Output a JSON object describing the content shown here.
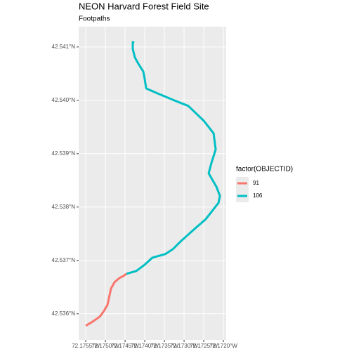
{
  "chart_data": {
    "type": "line",
    "title": "NEON Harvard Forest Field Site",
    "subtitle": "Footpaths",
    "legend_title": "factor(OBJECTID)",
    "xlim": [
      -72.17568,
      -72.17193
    ],
    "ylim": [
      42.53551,
      42.54138
    ],
    "xticks": [
      {
        "value": -72.1755,
        "label": "72.1755°W"
      },
      {
        "value": -72.175,
        "label": "72.1750°W"
      },
      {
        "value": -72.1745,
        "label": "72.1745°W"
      },
      {
        "value": -72.174,
        "label": "72.1740°W"
      },
      {
        "value": -72.1735,
        "label": "72.1735°W"
      },
      {
        "value": -72.173,
        "label": "72.1730°W"
      },
      {
        "value": -72.1725,
        "label": "72.1725°W"
      },
      {
        "value": -72.172,
        "label": "72.1720°W"
      }
    ],
    "yticks": [
      {
        "value": 42.536,
        "label": "42.536°N"
      },
      {
        "value": 42.537,
        "label": "42.537°N"
      },
      {
        "value": 42.538,
        "label": "42.538°N"
      },
      {
        "value": 42.539,
        "label": "42.539°N"
      },
      {
        "value": 42.54,
        "label": "42.540°N"
      },
      {
        "value": 42.541,
        "label": "42.541°N"
      }
    ],
    "grid": true,
    "series": [
      {
        "name": "91",
        "color": "#F8766D",
        "x": [
          -72.1755,
          -72.175321,
          -72.175143,
          -72.175036,
          -72.174946,
          -72.174893,
          -72.174857,
          -72.174768,
          -72.174643,
          -72.174536,
          -72.174464
        ],
        "values": [
          42.535776,
          42.535855,
          42.535947,
          42.536053,
          42.536171,
          42.536355,
          42.536474,
          42.536592,
          42.536671,
          42.536711,
          42.53675
        ]
      },
      {
        "name": "106",
        "color": "#00BFC4",
        "x": [
          -72.174464,
          -72.174214,
          -72.174,
          -72.173804,
          -72.173482,
          -72.173286,
          -72.173071,
          -72.17275,
          -72.172446,
          -72.172125,
          -72.172089,
          -72.172179,
          -72.172375,
          -72.172304,
          -72.172196,
          -72.17225,
          -72.1725,
          -72.172893,
          -72.17325,
          -72.173679,
          -72.173964,
          -72.174,
          -72.174036,
          -72.174161,
          -72.17425,
          -72.174304,
          -72.174304,
          -72.174268
        ],
        "values": [
          42.53675,
          42.536803,
          42.536921,
          42.537053,
          42.537118,
          42.537211,
          42.537368,
          42.537579,
          42.537776,
          42.538079,
          42.538211,
          42.538382,
          42.538632,
          42.538829,
          42.539079,
          42.539382,
          42.539618,
          42.539895,
          42.54,
          42.540132,
          42.540224,
          42.540395,
          42.540539,
          42.540684,
          42.540803,
          42.540961,
          42.541092,
          42.541079
        ]
      }
    ]
  }
}
